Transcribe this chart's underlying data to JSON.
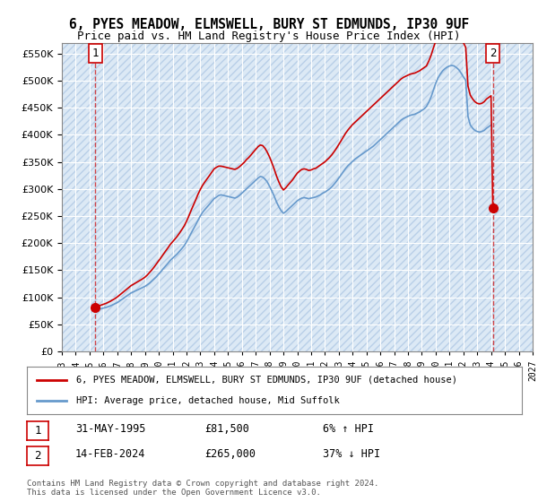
{
  "title_line1": "6, PYES MEADOW, ELMSWELL, BURY ST EDMUNDS, IP30 9UF",
  "title_line2": "Price paid vs. HM Land Registry's House Price Index (HPI)",
  "ylabel": "",
  "background_color": "#dce9f5",
  "hatch_color": "#c0d0e8",
  "plot_bg": "#dce9f5",
  "sale1_date": 1995.42,
  "sale1_price": 81500,
  "sale2_date": 2024.12,
  "sale2_price": 265000,
  "legend_line1": "6, PYES MEADOW, ELMSWELL, BURY ST EDMUNDS, IP30 9UF (detached house)",
  "legend_line2": "HPI: Average price, detached house, Mid Suffolk",
  "annotation1_label": "1",
  "annotation1_date": "31-MAY-1995",
  "annotation1_price": "£81,500",
  "annotation1_hpi": "6% ↑ HPI",
  "annotation2_label": "2",
  "annotation2_date": "14-FEB-2024",
  "annotation2_price": "£265,000",
  "annotation2_hpi": "37% ↓ HPI",
  "footer": "Contains HM Land Registry data © Crown copyright and database right 2024.\nThis data is licensed under the Open Government Licence v3.0.",
  "yticks": [
    0,
    50000,
    100000,
    150000,
    200000,
    250000,
    300000,
    350000,
    400000,
    450000,
    500000,
    550000
  ],
  "ytick_labels": [
    "£0",
    "£50K",
    "£100K",
    "£150K",
    "£200K",
    "£250K",
    "£300K",
    "£350K",
    "£400K",
    "£450K",
    "£500K",
    "£550K"
  ],
  "xmin": 1993,
  "xmax": 2027,
  "ymin": 0,
  "ymax": 570000,
  "price_line_color": "#cc0000",
  "hpi_line_color": "#6699cc",
  "sale_dot_color": "#cc0000",
  "hpi_data_years": [
    1995.33,
    1995.5,
    1995.67,
    1995.83,
    1996.0,
    1996.17,
    1996.33,
    1996.5,
    1996.67,
    1996.83,
    1997.0,
    1997.17,
    1997.33,
    1997.5,
    1997.67,
    1997.83,
    1998.0,
    1998.17,
    1998.33,
    1998.5,
    1998.67,
    1998.83,
    1999.0,
    1999.17,
    1999.33,
    1999.5,
    1999.67,
    1999.83,
    2000.0,
    2000.17,
    2000.33,
    2000.5,
    2000.67,
    2000.83,
    2001.0,
    2001.17,
    2001.33,
    2001.5,
    2001.67,
    2001.83,
    2002.0,
    2002.17,
    2002.33,
    2002.5,
    2002.67,
    2002.83,
    2003.0,
    2003.17,
    2003.33,
    2003.5,
    2003.67,
    2003.83,
    2004.0,
    2004.17,
    2004.33,
    2004.5,
    2004.67,
    2004.83,
    2005.0,
    2005.17,
    2005.33,
    2005.5,
    2005.67,
    2005.83,
    2006.0,
    2006.17,
    2006.33,
    2006.5,
    2006.67,
    2006.83,
    2007.0,
    2007.17,
    2007.33,
    2007.5,
    2007.67,
    2007.83,
    2008.0,
    2008.17,
    2008.33,
    2008.5,
    2008.67,
    2008.83,
    2009.0,
    2009.17,
    2009.33,
    2009.5,
    2009.67,
    2009.83,
    2010.0,
    2010.17,
    2010.33,
    2010.5,
    2010.67,
    2010.83,
    2011.0,
    2011.17,
    2011.33,
    2011.5,
    2011.67,
    2011.83,
    2012.0,
    2012.17,
    2012.33,
    2012.5,
    2012.67,
    2012.83,
    2013.0,
    2013.17,
    2013.33,
    2013.5,
    2013.67,
    2013.83,
    2014.0,
    2014.17,
    2014.33,
    2014.5,
    2014.67,
    2014.83,
    2015.0,
    2015.17,
    2015.33,
    2015.5,
    2015.67,
    2015.83,
    2016.0,
    2016.17,
    2016.33,
    2016.5,
    2016.67,
    2016.83,
    2017.0,
    2017.17,
    2017.33,
    2017.5,
    2017.67,
    2017.83,
    2018.0,
    2018.17,
    2018.33,
    2018.5,
    2018.67,
    2018.83,
    2019.0,
    2019.17,
    2019.33,
    2019.5,
    2019.67,
    2019.83,
    2020.0,
    2020.17,
    2020.33,
    2020.5,
    2020.67,
    2020.83,
    2021.0,
    2021.17,
    2021.33,
    2021.5,
    2021.67,
    2021.83,
    2022.0,
    2022.17,
    2022.33,
    2022.5,
    2022.67,
    2022.83,
    2023.0,
    2023.17,
    2023.33,
    2023.5,
    2023.67,
    2023.83,
    2024.0
  ],
  "hpi_values": [
    76000,
    77000,
    78000,
    79000,
    80000,
    81000,
    82500,
    84000,
    86000,
    88000,
    90000,
    93000,
    96000,
    99000,
    102000,
    105000,
    108000,
    110000,
    112000,
    114000,
    116000,
    118000,
    120000,
    123000,
    126000,
    130000,
    134000,
    138000,
    143000,
    148000,
    153000,
    158000,
    163000,
    168000,
    172000,
    176000,
    180000,
    185000,
    190000,
    195000,
    202000,
    210000,
    218000,
    226000,
    234000,
    242000,
    250000,
    257000,
    262000,
    267000,
    272000,
    277000,
    282000,
    285000,
    288000,
    289000,
    288000,
    287000,
    286000,
    285000,
    284000,
    283000,
    285000,
    288000,
    292000,
    296000,
    300000,
    304000,
    308000,
    312000,
    316000,
    320000,
    323000,
    322000,
    318000,
    313000,
    305000,
    296000,
    287000,
    276000,
    267000,
    260000,
    255000,
    258000,
    262000,
    266000,
    270000,
    274000,
    278000,
    281000,
    283000,
    284000,
    283000,
    282000,
    283000,
    284000,
    285000,
    287000,
    289000,
    292000,
    294000,
    297000,
    300000,
    304000,
    309000,
    314000,
    320000,
    326000,
    332000,
    338000,
    343000,
    347000,
    351000,
    355000,
    358000,
    361000,
    364000,
    367000,
    370000,
    373000,
    376000,
    379000,
    383000,
    387000,
    391000,
    395000,
    399000,
    403000,
    407000,
    411000,
    415000,
    419000,
    423000,
    427000,
    430000,
    432000,
    434000,
    436000,
    437000,
    438000,
    440000,
    442000,
    445000,
    448000,
    452000,
    460000,
    470000,
    482000,
    495000,
    505000,
    512000,
    518000,
    522000,
    525000,
    527000,
    528000,
    527000,
    524000,
    520000,
    514000,
    507000,
    500000,
    434000,
    418000,
    412000,
    408000,
    406000,
    405000,
    406000,
    408000,
    412000,
    415000,
    418000
  ],
  "price_line_years": [
    1995.42,
    1995.5,
    1995.67,
    1995.83,
    1996.0,
    1996.17,
    1996.33,
    1996.5,
    1996.67,
    1996.83,
    1997.0,
    1997.17,
    1997.33,
    1997.5,
    1997.67,
    1997.83,
    1998.0,
    1998.17,
    1998.33,
    1998.5,
    1998.67,
    1998.83,
    1999.0,
    1999.17,
    1999.33,
    1999.5,
    1999.67,
    1999.83,
    2000.0,
    2000.17,
    2000.33,
    2000.5,
    2000.67,
    2000.83,
    2001.0,
    2001.17,
    2001.33,
    2001.5,
    2001.67,
    2001.83,
    2002.0,
    2002.17,
    2002.33,
    2002.5,
    2002.67,
    2002.83,
    2003.0,
    2003.17,
    2003.33,
    2003.5,
    2003.67,
    2003.83,
    2004.0,
    2004.17,
    2004.33,
    2004.5,
    2004.67,
    2004.83,
    2005.0,
    2005.17,
    2005.33,
    2005.5,
    2005.67,
    2005.83,
    2006.0,
    2006.17,
    2006.33,
    2006.5,
    2006.67,
    2006.83,
    2007.0,
    2007.17,
    2007.33,
    2007.5,
    2007.67,
    2007.83,
    2008.0,
    2008.17,
    2008.33,
    2008.5,
    2008.67,
    2008.83,
    2009.0,
    2009.17,
    2009.33,
    2009.5,
    2009.67,
    2009.83,
    2010.0,
    2010.17,
    2010.33,
    2010.5,
    2010.67,
    2010.83,
    2011.0,
    2011.17,
    2011.33,
    2011.5,
    2011.67,
    2011.83,
    2012.0,
    2012.17,
    2012.33,
    2012.5,
    2012.67,
    2012.83,
    2013.0,
    2013.17,
    2013.33,
    2013.5,
    2013.67,
    2013.83,
    2014.0,
    2014.17,
    2014.33,
    2014.5,
    2014.67,
    2014.83,
    2015.0,
    2015.17,
    2015.33,
    2015.5,
    2015.67,
    2015.83,
    2016.0,
    2016.17,
    2016.33,
    2016.5,
    2016.67,
    2016.83,
    2017.0,
    2017.17,
    2017.33,
    2017.5,
    2017.67,
    2017.83,
    2018.0,
    2018.17,
    2018.33,
    2018.5,
    2018.67,
    2018.83,
    2019.0,
    2019.17,
    2019.33,
    2019.5,
    2019.67,
    2019.83,
    2020.0,
    2020.17,
    2020.33,
    2020.5,
    2020.67,
    2020.83,
    2021.0,
    2021.17,
    2021.33,
    2021.5,
    2021.67,
    2021.83,
    2022.0,
    2022.17,
    2022.33,
    2022.5,
    2022.67,
    2022.83,
    2023.0,
    2023.17,
    2023.33,
    2023.5,
    2023.67,
    2023.83,
    2024.0,
    2024.12
  ],
  "price_line_values": [
    81500,
    82500,
    84000,
    85500,
    87000,
    88500,
    90500,
    92500,
    95000,
    97500,
    100500,
    104000,
    107500,
    111000,
    114500,
    118000,
    121500,
    124000,
    126500,
    129000,
    131500,
    134000,
    137000,
    141000,
    145500,
    150500,
    156000,
    161500,
    167500,
    173500,
    179500,
    185500,
    191500,
    197500,
    202500,
    207500,
    212500,
    218500,
    225000,
    231500,
    240000,
    250000,
    260000,
    270000,
    280000,
    290000,
    299000,
    307000,
    313000,
    319000,
    325000,
    331000,
    337000,
    340000,
    342000,
    342000,
    341000,
    340000,
    339000,
    338000,
    337000,
    336000,
    338000,
    341000,
    345000,
    349000,
    354000,
    358000,
    363000,
    368000,
    373000,
    378000,
    381000,
    380000,
    375000,
    368000,
    359000,
    348000,
    337000,
    324000,
    313000,
    304000,
    298000,
    302000,
    307000,
    312000,
    317000,
    323000,
    329000,
    333000,
    336000,
    337000,
    336000,
    334000,
    335000,
    337000,
    338000,
    341000,
    344000,
    347000,
    350000,
    354000,
    358000,
    363000,
    369000,
    375000,
    382000,
    389000,
    396000,
    403000,
    409000,
    414000,
    419000,
    423000,
    427000,
    431000,
    435000,
    439000,
    443000,
    447000,
    451000,
    455000,
    459000,
    463000,
    467000,
    471000,
    475000,
    479000,
    483000,
    487000,
    491000,
    495000,
    499000,
    503000,
    506000,
    508000,
    510000,
    512000,
    513000,
    514000,
    516000,
    518000,
    521000,
    524000,
    527000,
    536000,
    547000,
    560000,
    573000,
    583000,
    590000,
    596000,
    599000,
    601000,
    602000,
    601000,
    598000,
    593000,
    587000,
    579000,
    570000,
    561000,
    490000,
    473000,
    466000,
    461000,
    458000,
    457000,
    458000,
    461000,
    466000,
    469000,
    472000,
    265000
  ]
}
